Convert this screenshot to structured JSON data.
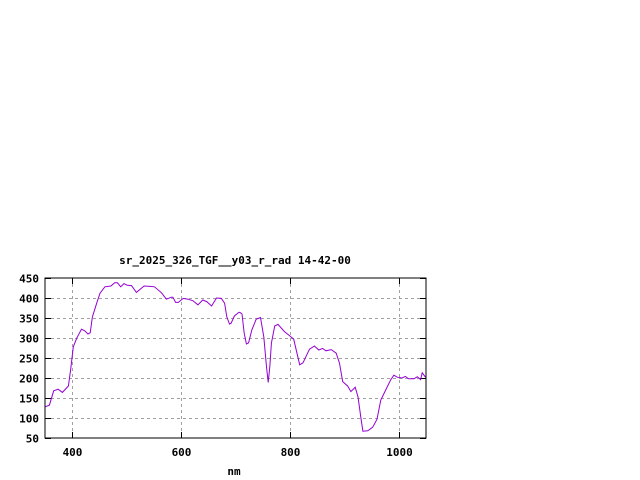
{
  "chart_data": {
    "type": "line",
    "title": "sr_2025_326_TGF__y03_r_rad 14-42-00",
    "xlabel": "nm",
    "ylabel": "",
    "xlim": [
      350,
      1050
    ],
    "ylim": [
      50,
      450
    ],
    "xticks": [
      400,
      600,
      800,
      1000
    ],
    "yticks": [
      50,
      100,
      150,
      200,
      250,
      300,
      350,
      400,
      450
    ],
    "grid": true,
    "legend": "none",
    "line_color": "#9400d3",
    "series": [
      {
        "x": [
          350,
          358,
          366,
          374,
          382,
          393,
          397,
          402,
          408,
          417,
          423,
          429,
          433,
          437,
          445,
          451,
          460,
          471,
          478,
          483,
          489,
          495,
          501,
          509,
          518,
          532,
          543,
          551,
          564,
          573,
          582,
          585,
          590,
          595,
          604,
          613,
          622,
          631,
          640,
          647,
          656,
          665,
          674,
          680,
          684,
          689,
          692,
          698,
          706,
          708,
          712,
          716,
          720,
          724,
          730,
          738,
          746,
          752,
          757,
          760,
          763,
          766,
          772,
          778,
          790,
          800,
          807,
          818,
          824,
          836,
          845,
          853,
          860,
          866,
          876,
          885,
          891,
          897,
          906,
          912,
          920,
          925,
          931,
          934,
          943,
          952,
          960,
          967,
          976,
          985,
          991,
          997,
          1006,
          1012,
          1018,
          1028,
          1034,
          1040,
          1043,
          1049
        ],
        "y": [
          128,
          132,
          168,
          172,
          164,
          180,
          220,
          278,
          299,
          322,
          318,
          310,
          313,
          353,
          387,
          412,
          428,
          430,
          438,
          438,
          428,
          436,
          432,
          431,
          414,
          430,
          429,
          428,
          413,
          397,
          402,
          402,
          389,
          389,
          399,
          397,
          393,
          383,
          395,
          391,
          380,
          400,
          399,
          387,
          353,
          335,
          337,
          355,
          364,
          364,
          360,
          312,
          285,
          288,
          320,
          347,
          351,
          303,
          228,
          189,
          228,
          287,
          330,
          334,
          316,
          305,
          297,
          233,
          238,
          272,
          280,
          270,
          274,
          268,
          271,
          262,
          237,
          191,
          180,
          166,
          177,
          153,
          95,
          67,
          68,
          77,
          97,
          145,
          170,
          195,
          207,
          202,
          200,
          204,
          198,
          198,
          203,
          196,
          213,
          202
        ]
      }
    ]
  }
}
